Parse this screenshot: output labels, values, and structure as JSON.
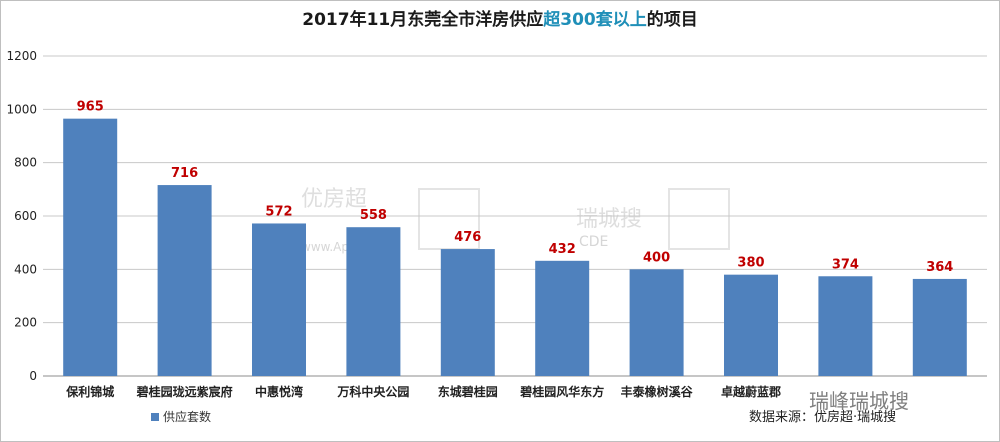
{
  "chart_data": {
    "type": "bar",
    "title": {
      "part1": "2017年11月东莞全市洋房供应",
      "accent": "超300套以上",
      "part2": "的项目"
    },
    "categories": [
      "保利锦城",
      "碧桂园珑远紫宸府",
      "中惠悦湾",
      "万科中央公园",
      "东城碧桂园",
      "碧桂园风华东方",
      "丰泰橡树溪谷",
      "卓越蔚蓝郡",
      "",
      ""
    ],
    "series": [
      {
        "name": "供应套数",
        "values": [
          965,
          716,
          572,
          558,
          476,
          432,
          400,
          380,
          374,
          364
        ],
        "color": "#4f81bd"
      }
    ],
    "xlabel": "",
    "ylabel": "",
    "ylim": [
      0,
      1200
    ],
    "yticks": [
      0,
      200,
      400,
      600,
      800,
      1000,
      1200
    ],
    "grid": true,
    "legend_position": "bottom-left",
    "label_color": "#c00000"
  },
  "source_note": "数据来源：优房超·瑞城搜",
  "watermarks": {
    "brand1": "优房超",
    "brand1_site": "www.Apyfc.com",
    "brand2": "瑞城搜",
    "brand2_sub": "CDE",
    "corner": "瑞峰瑞城搜"
  }
}
